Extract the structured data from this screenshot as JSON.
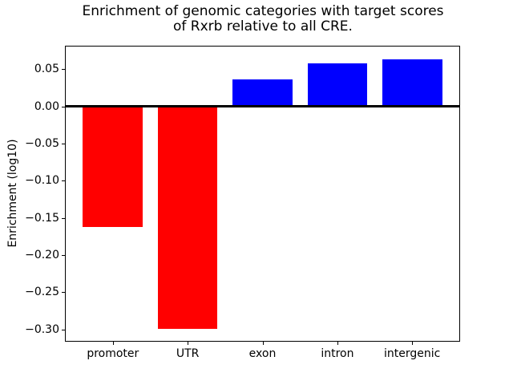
{
  "figure": {
    "title": "Enrichment of genomic categories with target scores\nof Rxrb relative to all CRE.",
    "ylabel": "Enrichment (log10)",
    "background_color": "#ffffff",
    "frame_color": "#000000"
  },
  "chart_data": {
    "type": "bar",
    "title": "Enrichment of genomic categories with target scores of Rxrb relative to all CRE.",
    "xlabel": "",
    "ylabel": "Enrichment (log10)",
    "categories": [
      "promoter",
      "UTR",
      "exon",
      "intron",
      "intergenic"
    ],
    "values": [
      -0.162,
      -0.299,
      0.036,
      0.058,
      0.063
    ],
    "bar_colors": [
      "#ff0000",
      "#ff0000",
      "#0000ff",
      "#0000ff",
      "#0000ff"
    ],
    "negative_color": "#ff0000",
    "positive_color": "#0000ff",
    "ylim": [
      -0.3165,
      0.0815
    ],
    "yticks": [
      0.05,
      0.0,
      -0.05,
      -0.1,
      -0.15,
      -0.2,
      -0.25,
      -0.3
    ],
    "ytick_labels": [
      "0.05",
      "0.00",
      "−0.05",
      "−0.10",
      "−0.15",
      "−0.20",
      "−0.25",
      "−0.30"
    ],
    "bar_width_fraction": 0.8,
    "grid": false,
    "legend": false,
    "zero_line": true
  }
}
